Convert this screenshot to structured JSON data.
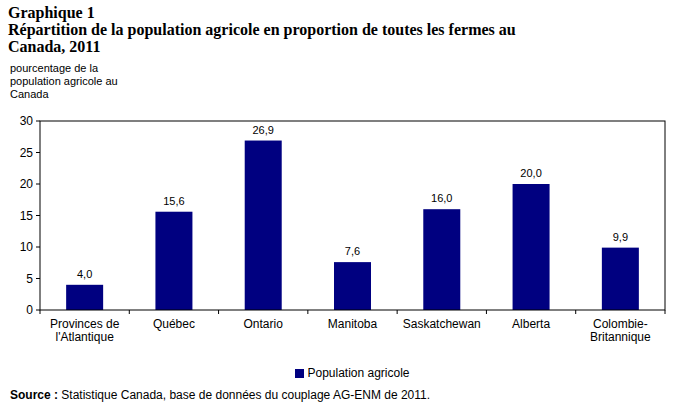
{
  "chart_data": {
    "type": "bar",
    "title": "Graphique 1",
    "subtitle": "Répartition de la population agricole en proportion de toutes les fermes au Canada, 2011",
    "y_label": "pourcentage de la population agricole au Canada",
    "categories": [
      "Provinces de l'Atlantique",
      "Québec",
      "Ontario",
      "Manitoba",
      "Saskatchewan",
      "Alberta",
      "Colombie-Britannique"
    ],
    "series": [
      {
        "name": "Population agricole",
        "color": "#000080",
        "values": [
          4.0,
          15.6,
          26.9,
          7.6,
          16.0,
          20.0,
          9.9
        ],
        "value_labels": [
          "4,0",
          "15,6",
          "26,9",
          "7,6",
          "16,0",
          "20,0",
          "9,9"
        ]
      }
    ],
    "ylim": [
      0,
      30
    ],
    "yticks": [
      0,
      5,
      10,
      15,
      20,
      25,
      30
    ],
    "grid": false,
    "data_labels": true,
    "legend": "bottom",
    "source": "Source : Statistique Canada, base de données du couplage AG-ENM de 2011."
  }
}
